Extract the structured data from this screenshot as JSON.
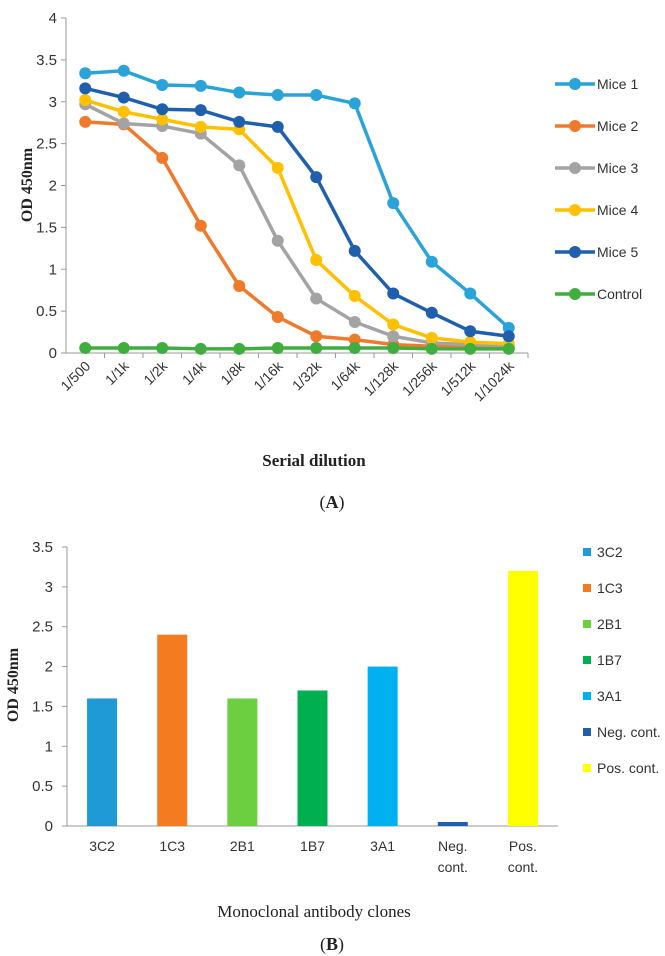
{
  "chart_data": [
    {
      "type": "line",
      "panel_label": "A",
      "xlabel": "Serial dilution",
      "ylabel": "OD 450nm",
      "ylim": [
        0,
        4
      ],
      "yticks": [
        "0",
        "0.5",
        "1",
        "1.5",
        "2",
        "2.5",
        "3",
        "3.5",
        "4"
      ],
      "categories": [
        "1/500",
        "1/1k",
        "1/2k",
        "1/4k",
        "1/8k",
        "1/16k",
        "1/32k",
        "1/64k",
        "1/128k",
        "1/256k",
        "1/512k",
        "1/1024k"
      ],
      "grid": false,
      "legend_position": "right",
      "series": [
        {
          "name": "Mice 1",
          "color": "#2aa3d9",
          "values": [
            3.34,
            3.37,
            3.2,
            3.19,
            3.11,
            3.08,
            3.08,
            2.98,
            1.79,
            1.09,
            0.71,
            0.3
          ]
        },
        {
          "name": "Mice 2",
          "color": "#f07a2b",
          "values": [
            2.76,
            2.73,
            2.33,
            1.52,
            0.8,
            0.43,
            0.2,
            0.16,
            0.1,
            0.08,
            0.07,
            0.06
          ]
        },
        {
          "name": "Mice 3",
          "color": "#a3a3a3",
          "values": [
            2.97,
            2.74,
            2.71,
            2.62,
            2.24,
            1.34,
            0.65,
            0.37,
            0.2,
            0.12,
            0.1,
            0.09
          ]
        },
        {
          "name": "Mice 4",
          "color": "#ffc000",
          "values": [
            3.02,
            2.88,
            2.79,
            2.7,
            2.67,
            2.21,
            1.11,
            0.68,
            0.34,
            0.18,
            0.13,
            0.11
          ]
        },
        {
          "name": "Mice 5",
          "color": "#1f5fae",
          "values": [
            3.16,
            3.05,
            2.91,
            2.9,
            2.76,
            2.7,
            2.1,
            1.22,
            0.71,
            0.48,
            0.26,
            0.2
          ]
        },
        {
          "name": "Control",
          "color": "#3fae3f",
          "values": [
            0.06,
            0.06,
            0.06,
            0.05,
            0.05,
            0.06,
            0.06,
            0.06,
            0.06,
            0.05,
            0.05,
            0.05
          ]
        }
      ]
    },
    {
      "type": "bar",
      "panel_label": "B",
      "xlabel": "Monoclonal antibody clones",
      "ylabel": "OD 450nm",
      "ylim": [
        0,
        3.5
      ],
      "yticks": [
        "0",
        "0.5",
        "1",
        "1.5",
        "2",
        "2.5",
        "3",
        "3.5"
      ],
      "categories": [
        "3C2",
        "1C3",
        "2B1",
        "1B7",
        "3A1",
        "Neg.\ncont.",
        "Pos.\ncont."
      ],
      "values": [
        1.6,
        2.4,
        1.6,
        1.7,
        2.0,
        0.05,
        3.2
      ],
      "colors": [
        "#1f9ad6",
        "#f47b20",
        "#6bcf3f",
        "#00b050",
        "#00b0f0",
        "#1f5fae",
        "#ffff00"
      ],
      "legend": [
        "3C2",
        "1C3",
        "2B1",
        "1B7",
        "3A1",
        "Neg. cont.",
        "Pos. cont."
      ],
      "grid": false,
      "legend_position": "right"
    }
  ]
}
